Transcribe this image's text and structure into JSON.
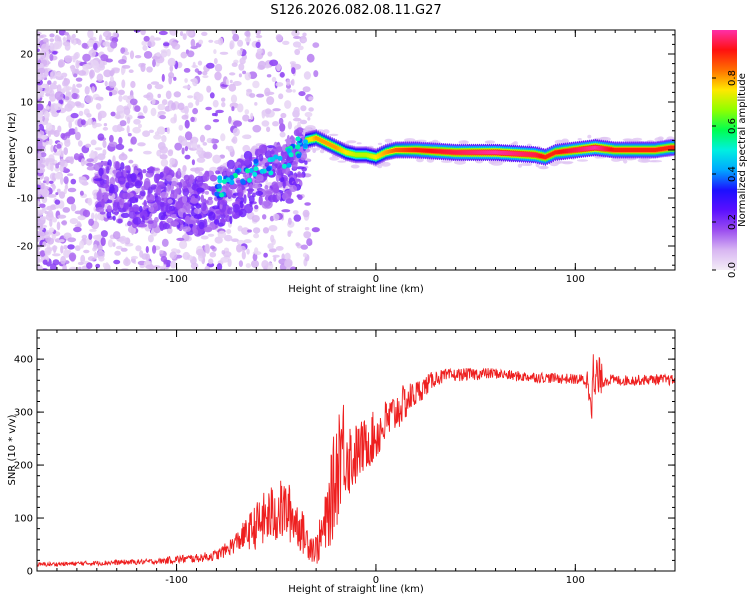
{
  "title": "S126.2026.082.08.11.G27",
  "colors": {
    "snr_line": "#ee2020",
    "axis": "#000000",
    "colormap": [
      "#f3ecf7",
      "#d8b6f2",
      "#9a4cf0",
      "#5a10ff",
      "#1c10ff",
      "#00a8ff",
      "#00f0e0",
      "#00ff50",
      "#90ff00",
      "#ffe800",
      "#ff7000",
      "#ff1010",
      "#ff2fa8"
    ]
  },
  "chart_data": [
    {
      "type": "heatmap",
      "title": "S126.2026.082.08.11.G27",
      "xlabel": "Height of straight line (km)",
      "ylabel": "Frequency (Hz)",
      "xlim": [
        -170,
        150
      ],
      "ylim": [
        -25,
        25
      ],
      "xticks": [
        -100,
        0,
        100
      ],
      "yticks": [
        -20,
        -10,
        0,
        10,
        20
      ],
      "colorbar": {
        "label": "Normalized spectral amplitude",
        "range": [
          0.0,
          1.0
        ],
        "ticks": [
          0.0,
          0.2,
          0.4,
          0.6,
          0.8
        ]
      },
      "ridge": {
        "x": [
          -170,
          -150,
          -130,
          -115,
          -100,
          -90,
          -80,
          -70,
          -60,
          -50,
          -45,
          -40,
          -35,
          -30,
          -20,
          -15,
          -10,
          -5,
          0,
          5,
          10,
          20,
          40,
          60,
          80,
          85,
          90,
          100,
          110,
          120,
          130,
          140,
          148
        ],
        "freq": [
          -2,
          -4,
          -7,
          -8,
          -8,
          -10,
          -8,
          -6,
          -4,
          -3,
          -2,
          0,
          2,
          2.5,
          0.5,
          -0.5,
          -1,
          -1,
          -1.5,
          -0.5,
          0,
          0,
          -0.5,
          -0.5,
          -1,
          -1.5,
          -0.5,
          0,
          0.5,
          0,
          0,
          0,
          0.5
        ],
        "amp": [
          0.05,
          0.1,
          0.15,
          0.2,
          0.2,
          0.22,
          0.25,
          0.3,
          0.35,
          0.45,
          0.5,
          0.55,
          0.7,
          0.8,
          0.8,
          0.75,
          0.7,
          0.7,
          0.75,
          0.8,
          0.85,
          0.9,
          0.95,
          1.0,
          0.95,
          0.9,
          0.9,
          0.95,
          1.0,
          0.9,
          0.9,
          0.9,
          0.9
        ]
      }
    },
    {
      "type": "line",
      "title": "",
      "xlabel": "Height of straight line (km)",
      "ylabel": "SNR (10 * v/v)",
      "xlim": [
        -170,
        150
      ],
      "ylim": [
        0,
        455
      ],
      "xticks": [
        -100,
        0,
        100
      ],
      "yticks": [
        0,
        100,
        200,
        300,
        400
      ],
      "series": [
        {
          "name": "SNR",
          "x": [
            -170,
            -150,
            -130,
            -110,
            -100,
            -90,
            -80,
            -75,
            -70,
            -65,
            -60,
            -55,
            -50,
            -45,
            -40,
            -35,
            -30,
            -25,
            -20,
            -18,
            -15,
            -12,
            -10,
            -5,
            0,
            5,
            10,
            15,
            20,
            25,
            30,
            40,
            50,
            60,
            70,
            80,
            90,
            100,
            105,
            108,
            110,
            112,
            115,
            120,
            130,
            140,
            150
          ],
          "values": [
            12,
            14,
            16,
            18,
            22,
            24,
            30,
            40,
            55,
            70,
            85,
            100,
            110,
            115,
            95,
            60,
            40,
            90,
            180,
            240,
            230,
            210,
            220,
            240,
            255,
            280,
            300,
            320,
            335,
            350,
            365,
            370,
            372,
            373,
            368,
            366,
            364,
            362,
            360,
            350,
            345,
            365,
            362,
            360,
            360,
            362,
            360
          ],
          "noise": [
            4,
            4,
            5,
            5,
            8,
            8,
            10,
            14,
            20,
            30,
            45,
            55,
            60,
            60,
            50,
            35,
            30,
            60,
            110,
            120,
            90,
            70,
            60,
            50,
            50,
            45,
            40,
            35,
            25,
            20,
            15,
            12,
            12,
            10,
            10,
            10,
            10,
            10,
            12,
            60,
            90,
            40,
            12,
            10,
            10,
            10,
            10
          ]
        }
      ]
    }
  ]
}
